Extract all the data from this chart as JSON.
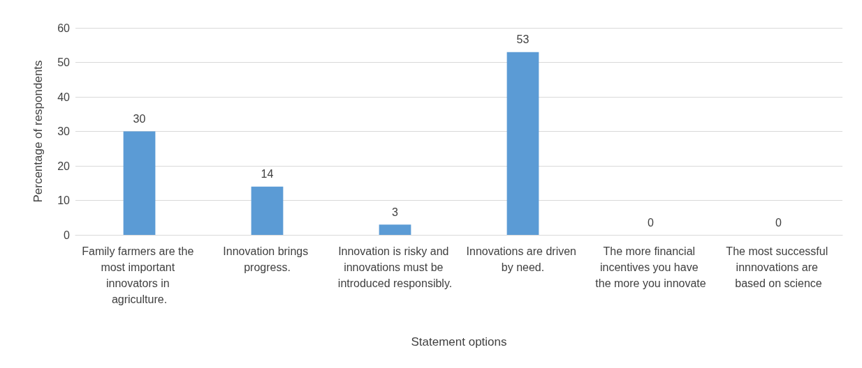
{
  "chart_data": {
    "type": "bar",
    "xlabel": "Statement options",
    "ylabel": "Percentage of respondents",
    "categories": [
      "Family farmers are the most important innovators in agriculture.",
      "Innovation brings progress.",
      "Innovation is risky and innovations must be introduced responsibly.",
      "Innovations are driven by need.",
      "The more financial incentives you have the more you innovate",
      "The most successful innnovations are based on science"
    ],
    "values": [
      30,
      14,
      3,
      53,
      0,
      0
    ],
    "color": "#5b9bd5",
    "ylim": [
      0,
      60
    ],
    "yticks": [
      0,
      10,
      20,
      30,
      40,
      50,
      60
    ],
    "grid": "y",
    "data_labels": true
  }
}
